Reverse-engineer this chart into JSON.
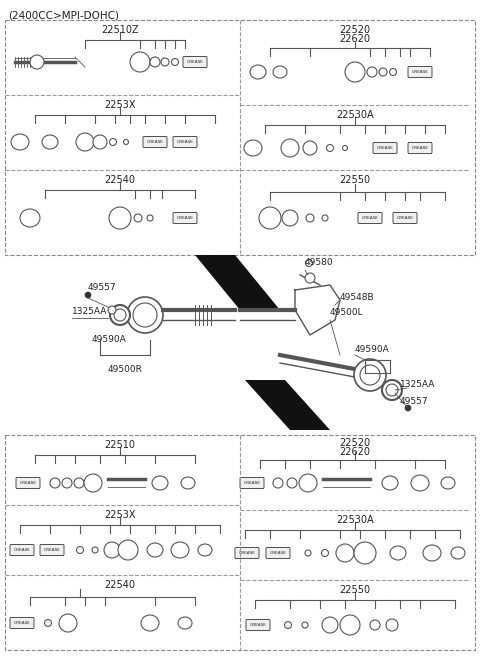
{
  "title": "(2400CC>MPI-DOHC)",
  "bg_color": "#ffffff",
  "border_color": "#888888",
  "text_color": "#333333",
  "part_numbers_top_left": {
    "row1": "22510Z",
    "row2": "2253X",
    "row3": "22540"
  },
  "part_numbers_top_right": {
    "row1a": "22520",
    "row1b": "22620",
    "row2": "22530A",
    "row3": "22550"
  },
  "part_numbers_bottom_left": {
    "row1": "22510",
    "row2": "2253X",
    "row3": "22540"
  },
  "part_numbers_bottom_right": {
    "row1a": "22520",
    "row1b": "22620",
    "row2": "22530A",
    "row3": "22550"
  },
  "center_labels": {
    "left_top": "49557",
    "left_mid": "1325AA",
    "left_bot": "49590A",
    "left_shaft": "49500R",
    "right_top": "49580",
    "right_mid1": "49548B",
    "right_mid2": "49500L",
    "right_bot1": "49590A",
    "right_bot2": "1325AA",
    "right_bot3": "49557"
  }
}
